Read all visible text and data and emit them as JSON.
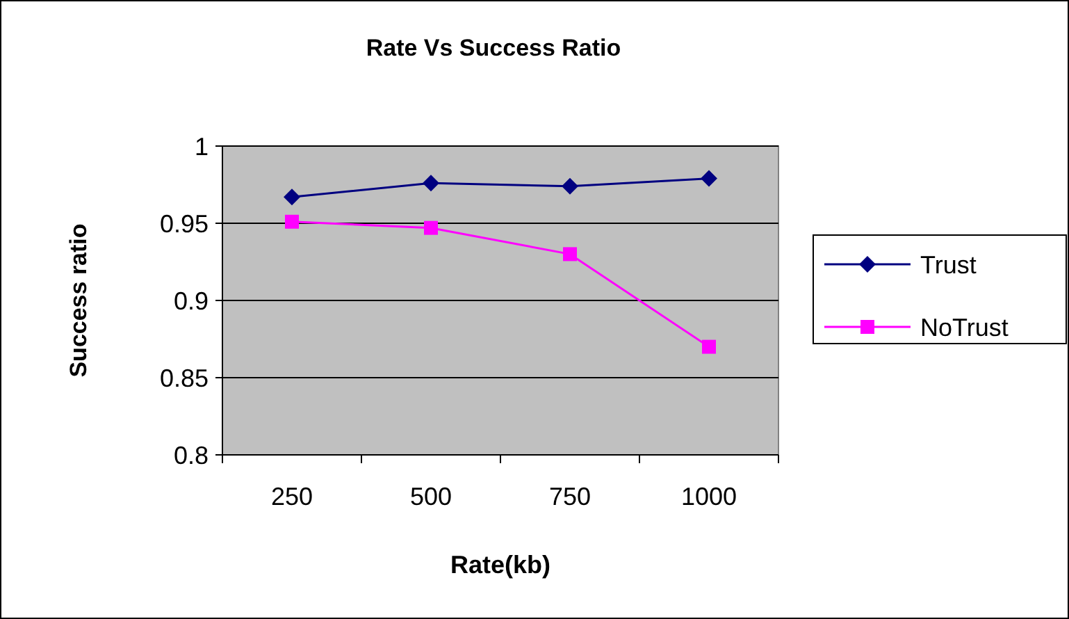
{
  "chart_data": {
    "type": "line",
    "title": "Rate Vs Success Ratio",
    "xlabel": "Rate(kb)",
    "ylabel": "Success ratio",
    "categories": [
      "250",
      "500",
      "750",
      "1000"
    ],
    "series": [
      {
        "name": "Trust",
        "color": "#000080",
        "marker": "diamond",
        "values": [
          0.967,
          0.976,
          0.974,
          0.979
        ]
      },
      {
        "name": "NoTrust",
        "color": "#ff00ff",
        "marker": "square",
        "values": [
          0.951,
          0.947,
          0.93,
          0.87
        ]
      }
    ],
    "ylim": [
      0.8,
      1
    ],
    "yticks": [
      0.8,
      0.85,
      0.9,
      0.95,
      1
    ],
    "grid": "y",
    "legend": "right"
  }
}
